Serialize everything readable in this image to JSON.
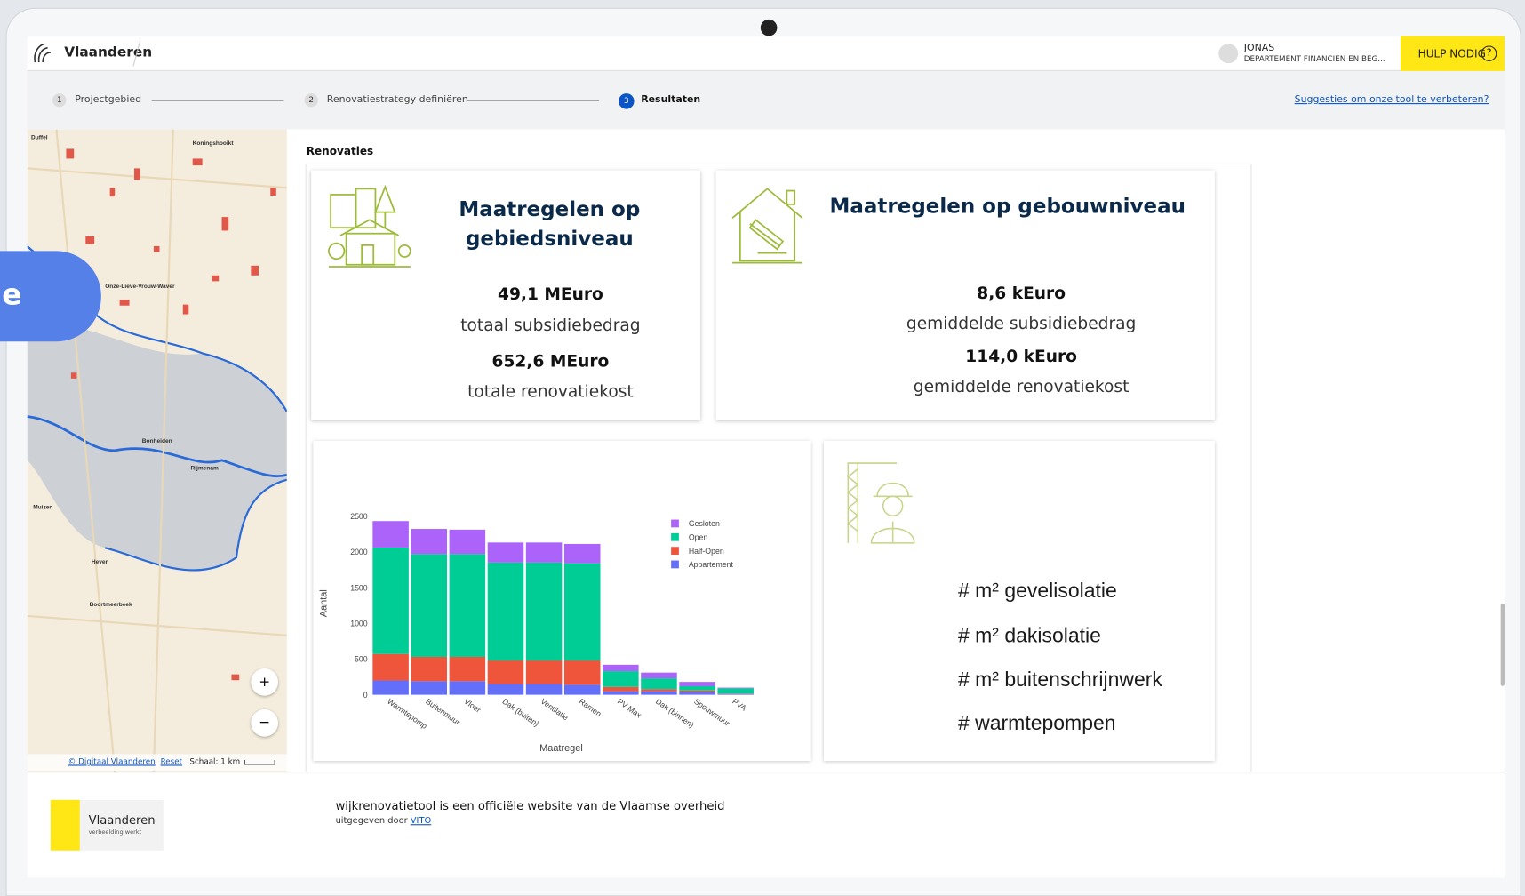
{
  "header": {
    "brand": "Vlaanderen",
    "user_name": "JONAS",
    "user_org": "DEPARTEMENT FINANCIEN EN BEG...",
    "help": "HULP NODIG"
  },
  "steps": [
    {
      "number": "1",
      "label": "Projectgebied"
    },
    {
      "number": "2",
      "label": "Renovatiestrategy definiëren"
    },
    {
      "number": "3",
      "label": "Resultaten"
    }
  ],
  "feedback_link": "Suggesties om onze tool te verbeteren?",
  "side_tab": "e",
  "map": {
    "places": [
      "Duffel",
      "Koningshooikt",
      "Onze-Lieve-Vrouw-Waver",
      "Bonheiden",
      "Rijmenam",
      "Muizen",
      "Hever",
      "Boortmeerbeek"
    ],
    "attribution": "© Digitaal Vlaanderen",
    "reset": "Reset",
    "scale": "Schaal: 1 km",
    "zoom_in": "+",
    "zoom_out": "−"
  },
  "section_title": "Renovaties",
  "cards": [
    {
      "title": "Maatregelen op gebiedsniveau",
      "stats": [
        {
          "value": "49,1 MEuro",
          "label": "totaal subsidiebedrag"
        },
        {
          "value": "652,6 MEuro",
          "label": "totale renovatiekost"
        }
      ]
    },
    {
      "title": "Maatregelen op gebouwniveau",
      "stats": [
        {
          "value": "8,6 kEuro",
          "label": "gemiddelde subsidiebedrag"
        },
        {
          "value": "114,0 kEuro",
          "label": "gemiddelde renovatiekost"
        }
      ]
    }
  ],
  "chart_data": {
    "type": "stacked_bar",
    "x_label": "Maatregel",
    "y_label": "Aantal",
    "categories": [
      "Warmtepomp",
      "Buitenmuur",
      "Vloer",
      "Dak (buiten)",
      "Ventilatie",
      "Ramen",
      "PV Max",
      "Dak (binnen)",
      "Spouwmuur",
      "PVA"
    ],
    "series": [
      {
        "name": "Appartement",
        "color": "#636efa",
        "values": [
          200,
          190,
          190,
          150,
          150,
          140,
          50,
          50,
          40,
          10
        ]
      },
      {
        "name": "Half-Open",
        "color": "#ef553b",
        "values": [
          370,
          340,
          340,
          330,
          330,
          340,
          60,
          30,
          20,
          5
        ]
      },
      {
        "name": "Open",
        "color": "#00cc96",
        "values": [
          1490,
          1440,
          1440,
          1370,
          1370,
          1360,
          220,
          150,
          60,
          75
        ]
      },
      {
        "name": "Gesloten",
        "color": "#ab63fa",
        "values": [
          370,
          350,
          340,
          280,
          280,
          270,
          90,
          80,
          60,
          10
        ]
      }
    ],
    "ylim": [
      0,
      2600
    ],
    "yticks": [
      0,
      500,
      1000,
      1500,
      2000,
      2500
    ],
    "legend": "top-right"
  },
  "measures": [
    "# m² gevelisolatie",
    "# m² dakisolatie",
    "# m² buitenschrijnwerk",
    "# warmtepompen"
  ],
  "footer": {
    "logo_name": "Vlaanderen",
    "logo_tagline": "verbeelding werkt",
    "statement": "wijkrenovatietool is een officiële website van de Vlaamse overheid",
    "published_by": "uitgegeven door",
    "publisher": "VITO"
  }
}
